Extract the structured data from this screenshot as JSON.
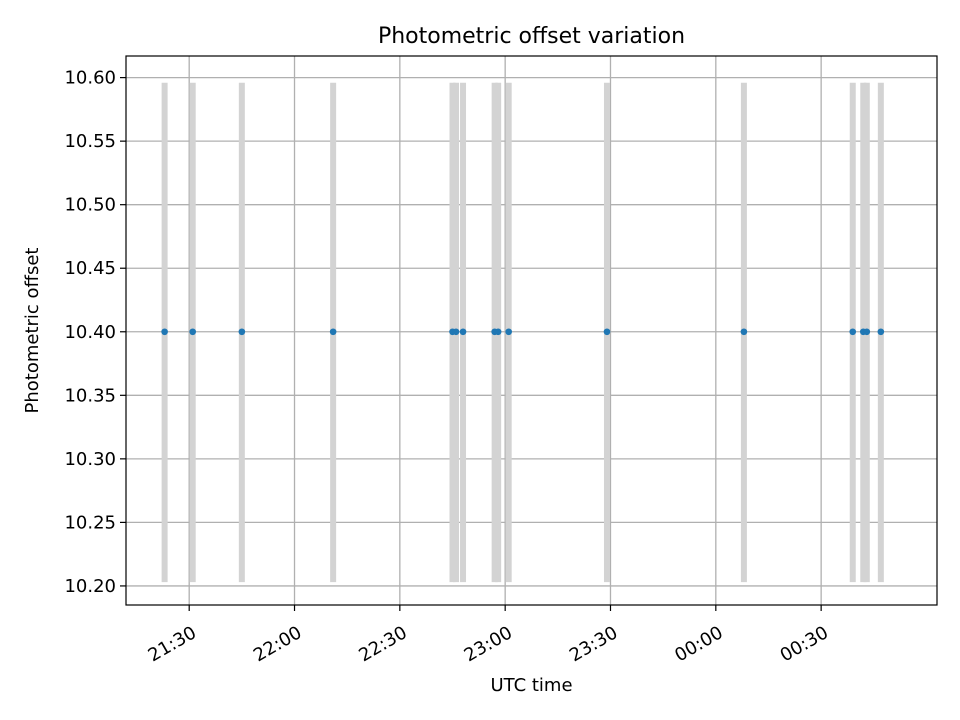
{
  "chart_data": {
    "type": "scatter",
    "title": "Photometric offset variation",
    "xlabel": "UTC time",
    "ylabel": "Photometric offset",
    "grid": true,
    "legend": "none",
    "xlim": [
      "21:12",
      "01:03"
    ],
    "ylim": [
      10.185,
      10.617
    ],
    "x_tick_labels": [
      "21:30",
      "22:00",
      "22:30",
      "23:00",
      "23:30",
      "00:00",
      "00:30"
    ],
    "y_tick_labels": [
      "10.20",
      "10.25",
      "10.30",
      "10.35",
      "10.40",
      "10.45",
      "10.50",
      "10.55",
      "10.60"
    ],
    "y_ticks": [
      10.2,
      10.25,
      10.3,
      10.35,
      10.4,
      10.45,
      10.5,
      10.55,
      10.6
    ],
    "series": [
      {
        "x": [
          "21:23",
          "21:31",
          "21:45",
          "22:11",
          "22:45",
          "22:46",
          "22:48",
          "22:57",
          "22:58",
          "23:01",
          "23:29",
          "00:08",
          "00:39",
          "00:42",
          "00:43",
          "00:47"
        ],
        "y": [
          10.4,
          10.4,
          10.4,
          10.4,
          10.4,
          10.4,
          10.4,
          10.4,
          10.4,
          10.4,
          10.4,
          10.4,
          10.4,
          10.4,
          10.4,
          10.4
        ],
        "error_low": [
          10.203,
          10.203,
          10.203,
          10.203,
          10.203,
          10.203,
          10.203,
          10.203,
          10.203,
          10.203,
          10.203,
          10.203,
          10.203,
          10.203,
          10.203,
          10.203
        ],
        "error_high": [
          10.596,
          10.596,
          10.596,
          10.596,
          10.596,
          10.596,
          10.596,
          10.596,
          10.596,
          10.596,
          10.596,
          10.596,
          10.596,
          10.596,
          10.596,
          10.596
        ]
      }
    ],
    "colors": {
      "marker": "#1f77b4",
      "errorbar": "#d3d3d3",
      "grid": "#b0b0b0",
      "axes": "#000000"
    }
  }
}
